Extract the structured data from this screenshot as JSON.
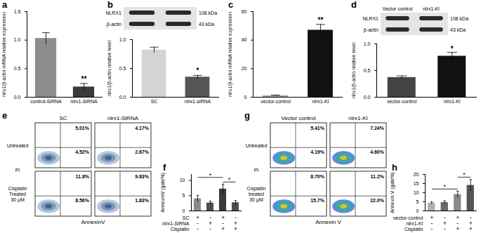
{
  "chart_data": [
    {
      "type": "bar",
      "title": "a",
      "categories": [
        "control-SiRNA",
        "nlrx1-SiRNA"
      ],
      "values": [
        1.03,
        0.18
      ],
      "errors": [
        0.1,
        0.06
      ],
      "colors": [
        "#8c8c8c",
        "#3a3a3a"
      ],
      "y_label": "nlrx1/β-actin mRNA relative expression",
      "ylim": [
        0,
        1.5
      ],
      "yticks": [
        {
          "value": 0,
          "label": "0.0"
        },
        {
          "value": 0.5,
          "label": "0.5"
        },
        {
          "value": 1,
          "label": "1.0"
        },
        {
          "value": 1.5,
          "label": "1.5"
        }
      ],
      "annotations": [
        {
          "x": "nlrx1-SiRNA",
          "y": 0.32,
          "text": "**"
        }
      ]
    },
    {
      "type": "bar",
      "title": "b",
      "categories": [
        "SC",
        "nlrx1-siRNA"
      ],
      "values": [
        0.82,
        0.35
      ],
      "errors": [
        0.05,
        0.03
      ],
      "colors": [
        "#d4d4d4",
        "#555555"
      ],
      "y_label": "nlrx1/β-actin relative level",
      "ylim": [
        0,
        1
      ],
      "yticks": [
        {
          "value": 0,
          "label": "0.0"
        },
        {
          "value": 0.5,
          "label": "0.5"
        },
        {
          "value": 1,
          "label": "1.0"
        }
      ],
      "annotations": [
        {
          "x": "nlrx1-siRNA",
          "y": 0.46,
          "text": "*"
        }
      ]
    },
    {
      "type": "bar",
      "title": "c",
      "categories": [
        "vector-control",
        "nlrx1-KI"
      ],
      "values": [
        1,
        47
      ],
      "errors": [
        0.5,
        4
      ],
      "colors": [
        "#9a9a9a",
        "#111111"
      ],
      "y_label": "nlrx1/β-actin mRNA relative expression",
      "ylim": [
        0,
        60
      ],
      "yticks": [
        0,
        20,
        40,
        60
      ],
      "annotations": [
        {
          "x": "nlrx1-KI",
          "y": 54,
          "text": "**"
        }
      ]
    },
    {
      "type": "bar",
      "title": "d",
      "categories": [
        "vector-control",
        "nlrx1-KI"
      ],
      "values": [
        0.37,
        0.77
      ],
      "errors": [
        0.03,
        0.07
      ],
      "colors": [
        "#444444",
        "#111111"
      ],
      "y_label": "nlrx1/β-actin relative level",
      "ylim": [
        0,
        1
      ],
      "yticks": [
        {
          "value": 0,
          "label": "0.0"
        },
        {
          "value": 0.5,
          "label": "0.5"
        },
        {
          "value": 1,
          "label": "1.0"
        }
      ],
      "annotations": [
        {
          "x": "nlrx1-KI",
          "y": 0.9,
          "text": "*"
        }
      ]
    },
    {
      "type": "bar",
      "title": "f",
      "categories": [
        null,
        null,
        null,
        null
      ],
      "values": [
        4.0,
        2.6,
        7.2,
        2.7
      ],
      "errors": [
        1.1,
        0.6,
        1.6,
        0.7
      ],
      "colors": [
        "#8a8a8a",
        "#4d4d4d",
        "#3a3a3a",
        "#4d4d4d"
      ],
      "y_label": "AnnexinV (gate%)",
      "ylim": [
        0,
        12
      ],
      "yticks": [
        0,
        5,
        10
      ],
      "brackets": [
        {
          "from": 0,
          "to": 2,
          "y": 11,
          "text": "*"
        },
        {
          "from": 2,
          "to": 3,
          "y": 9.5,
          "text": "*"
        }
      ],
      "conditions": [
        {
          "name": "SC",
          "signs": [
            "+",
            "-",
            "+",
            "-"
          ]
        },
        {
          "name": "nlrx1-SiRNA",
          "signs": [
            "-",
            "+",
            "-",
            "+"
          ]
        },
        {
          "name": "Cisplatin",
          "signs": [
            "-",
            "-",
            "+",
            "+"
          ]
        }
      ]
    },
    {
      "type": "bar",
      "title": "h",
      "categories": [
        null,
        null,
        null,
        null
      ],
      "values": [
        4.2,
        4.6,
        9.0,
        14.0
      ],
      "errors": [
        0.7,
        0.9,
        1.8,
        3.2
      ],
      "colors": [
        "#b0b0b0",
        "#6a6a6a",
        "#8a8a8a",
        "#555555"
      ],
      "y_label": "Annexin V (gate%)",
      "ylim": [
        0,
        20
      ],
      "yticks": [
        0,
        5,
        10,
        15,
        20
      ],
      "brackets": [
        {
          "from": 0,
          "to": 2,
          "y": 12,
          "text": "*"
        },
        {
          "from": 2,
          "to": 3,
          "y": 18.5,
          "text": "*"
        }
      ],
      "conditions": [
        {
          "name": "vector-control",
          "signs": [
            "+",
            "-",
            "+",
            "-"
          ]
        },
        {
          "name": "nlrx1-KI",
          "signs": [
            "-",
            "+",
            "-",
            "+"
          ]
        },
        {
          "name": "Cisplatin",
          "signs": [
            "-",
            "-",
            "+",
            "+"
          ]
        }
      ]
    }
  ],
  "western_blots": {
    "b": {
      "lanes": [
        null,
        null
      ],
      "bands": [
        {
          "name": "NLRX1",
          "size": "108 kDa"
        },
        {
          "name": "β-actin",
          "size": "43 kDa"
        }
      ]
    },
    "d": {
      "lanes": [
        "Vector control",
        "nlrx1-KI"
      ],
      "bands": [
        {
          "name": "NLRX1",
          "size": "108 kDa"
        },
        {
          "name": "β-actin",
          "size": "43 kDa"
        }
      ]
    }
  },
  "flow_cytometry": {
    "e": {
      "columns": [
        "SC",
        "nlrx1-SiRNA"
      ],
      "rows": [
        [
          "Untreated"
        ],
        [
          "Cisplatin",
          "Treated",
          "30 μM"
        ]
      ],
      "y_label": "PI",
      "x_label": "AnnexinV",
      "cells": [
        [
          {
            "upper_right": "5.01%",
            "lower_right": "4.52%"
          },
          {
            "upper_right": "4.17%",
            "lower_right": "2.67%"
          }
        ],
        [
          {
            "upper_right": "11.8%",
            "lower_right": "8.56%"
          },
          {
            "upper_right": "9.83%",
            "lower_right": "1.83%"
          }
        ]
      ]
    },
    "g": {
      "columns": [
        "Vector control",
        "nlrx1-KI"
      ],
      "rows": [
        [
          "Untreated"
        ],
        [
          "Cisplatin",
          "treated",
          "30 μM"
        ]
      ],
      "y_label": "PI",
      "x_label": "Annexin V",
      "cells": [
        [
          {
            "upper_right": "5.41%",
            "lower_right": "4.19%"
          },
          {
            "upper_right": "7.24%",
            "lower_right": "4.60%"
          }
        ],
        [
          {
            "upper_right": "8.70%",
            "lower_right": "15.7%"
          },
          {
            "upper_right": "11.2%",
            "lower_right": "22.0%"
          }
        ]
      ]
    }
  }
}
